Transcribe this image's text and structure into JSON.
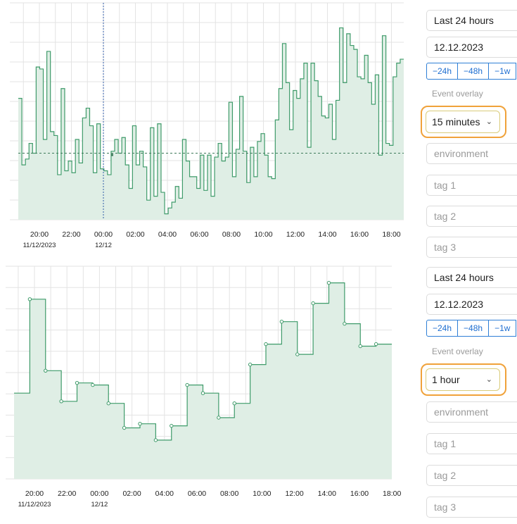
{
  "chart_data": [
    {
      "type": "line",
      "step": true,
      "resolution": "15 minutes",
      "x_tick_labels": [
        "20:00",
        "22:00",
        "00:00",
        "02:00",
        "04:00",
        "06:00",
        "08:00",
        "10:00",
        "12:00",
        "14:00",
        "16:00",
        "18:00"
      ],
      "x_date_labels": [
        "11/12/2023",
        "12/12"
      ],
      "series": [
        {
          "values": [
            0.62,
            0.28,
            0.31,
            0.39,
            0.34,
            0.78,
            0.77,
            0.41,
            0.86,
            0.45,
            0.43,
            0.23,
            0.67,
            0.25,
            0.3,
            0.24,
            0.41,
            0.29,
            0.52,
            0.57,
            0.48,
            0.24,
            0.49,
            0.26,
            0.25,
            0.23,
            0.35,
            0.41,
            0.34,
            0.42,
            0.28,
            0.16,
            0.48,
            0.28,
            0.35,
            0.27,
            0.1,
            0.47,
            0.12,
            0.49,
            0.14,
            0.03,
            0.06,
            0.09,
            0.17,
            0.11,
            0.41,
            0.3,
            0.22,
            0.22,
            0.16,
            0.33,
            0.15,
            0.33,
            0.12,
            0.32,
            0.39,
            0.3,
            0.32,
            0.6,
            0.22,
            0.36,
            0.63,
            0.35,
            0.19,
            0.37,
            0.22,
            0.4,
            0.44,
            0.33,
            0.22,
            0.21,
            0.51,
            0.67,
            0.9,
            0.7,
            0.46,
            0.66,
            0.62,
            0.72,
            0.8,
            0.37,
            0.8,
            0.71,
            0.63,
            0.53,
            0.52,
            0.59,
            0.41,
            0.61,
            0.98,
            0.7,
            0.95,
            0.89,
            0.87,
            0.73,
            0.72,
            0.84,
            0.7,
            0.59,
            0.74,
            0.33,
            0.94,
            0.39,
            0.38,
            0.73,
            0.8,
            0.82
          ]
        }
      ],
      "reference_line": 0.34,
      "cursor_time": "00:00"
    },
    {
      "type": "line",
      "step": true,
      "resolution": "1 hour",
      "x_tick_labels": [
        "20:00",
        "22:00",
        "00:00",
        "02:00",
        "04:00",
        "06:00",
        "08:00",
        "10:00",
        "12:00",
        "14:00",
        "16:00",
        "18:00"
      ],
      "x_date_labels": [
        "11/12/2023",
        "12/12"
      ],
      "series": [
        {
          "values": [
            0.42,
            0.88,
            0.53,
            0.38,
            0.47,
            0.46,
            0.37,
            0.25,
            0.27,
            0.19,
            0.26,
            0.46,
            0.42,
            0.3,
            0.37,
            0.56,
            0.66,
            0.77,
            0.61,
            0.86,
            0.96,
            0.76,
            0.65,
            0.66
          ]
        }
      ]
    }
  ],
  "controls": [
    {
      "range_label": "Last 24 hours",
      "date_value": "12.12.2023",
      "shift_buttons": [
        "−24h",
        "−48h",
        "−1w"
      ],
      "event_overlay_label": "Event overlay",
      "resolution_value": "15 minutes",
      "environment_placeholder": "environment",
      "tag1_placeholder": "tag 1",
      "tag2_placeholder": "tag 2",
      "tag3_placeholder": "tag 3"
    },
    {
      "range_label": "Last 24 hours",
      "date_value": "12.12.2023",
      "shift_buttons": [
        "−24h",
        "−48h",
        "−1w"
      ],
      "event_overlay_label": "Event overlay",
      "resolution_value": "1 hour",
      "environment_placeholder": "environment",
      "tag1_placeholder": "tag 1",
      "tag2_placeholder": "tag 2",
      "tag3_placeholder": "tag 3"
    }
  ],
  "colors": {
    "line": "#3f9b6a",
    "fill": "#dfeee5",
    "grid": "#e3e3e3",
    "accent": "#2f7fd6",
    "highlight": "#f0a23a"
  }
}
